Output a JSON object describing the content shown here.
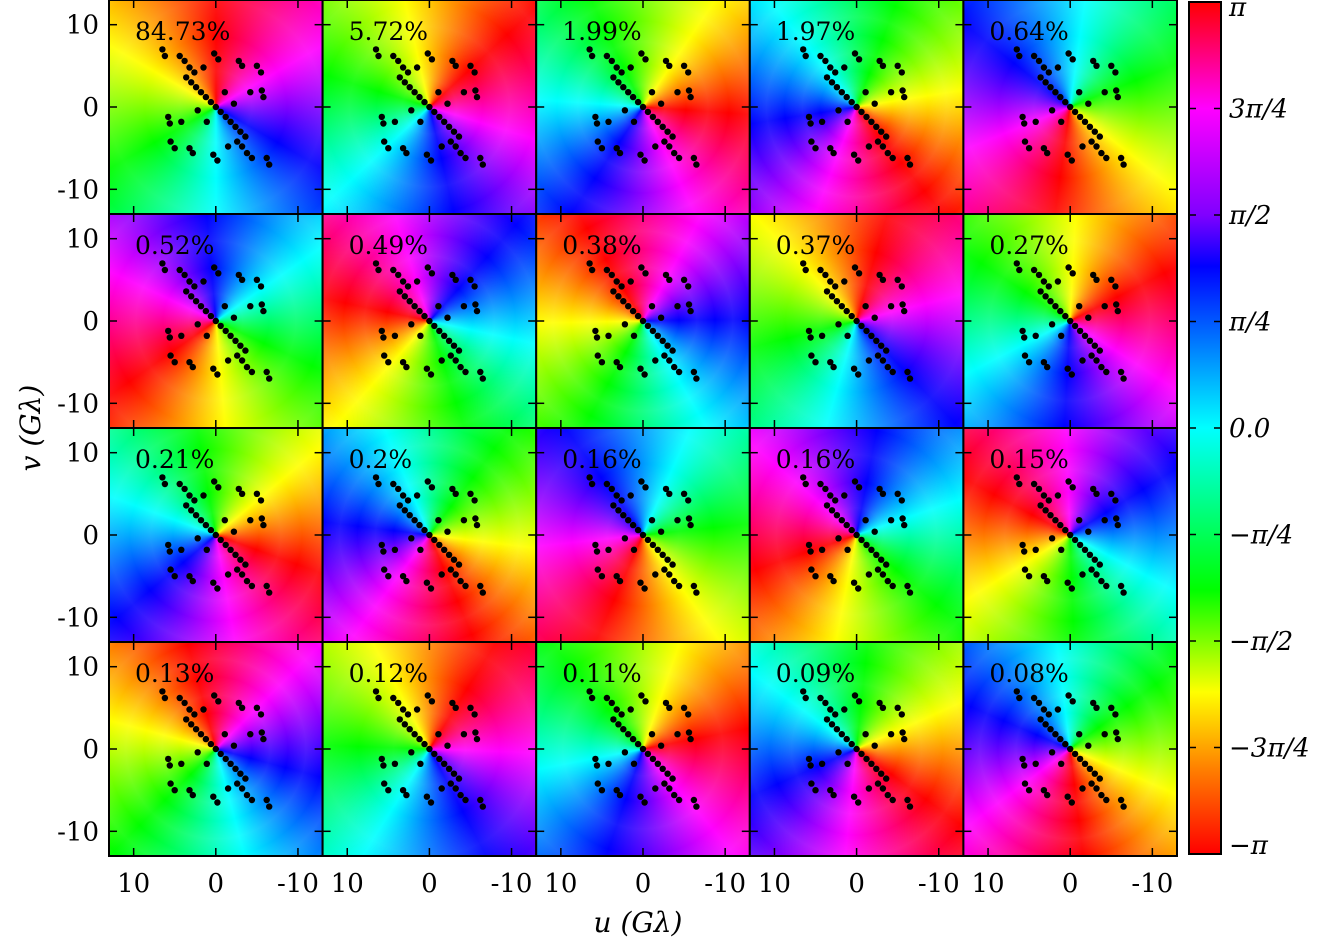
{
  "chart_data": {
    "type": "heatmap",
    "title": "",
    "xlabel": "u (Gλ)",
    "ylabel": "v (Gλ)",
    "grid_rows": 4,
    "grid_cols": 5,
    "xlim": [
      13,
      -13
    ],
    "ylim": [
      -13,
      13
    ],
    "x_ticks": [
      "10",
      "0",
      "-10"
    ],
    "y_ticks": [
      "10",
      "0",
      "-10"
    ],
    "panel_labels": [
      "84.73%",
      "5.72%",
      "1.99%",
      "1.97%",
      "0.64%",
      "0.52%",
      "0.49%",
      "0.38%",
      "0.37%",
      "0.27%",
      "0.21%",
      "0.2%",
      "0.16%",
      "0.16%",
      "0.15%",
      "0.13%",
      "0.12%",
      "0.11%",
      "0.09%",
      "0.08%"
    ],
    "colorbar": {
      "range": [
        -3.14159,
        3.14159
      ],
      "tick_labels": [
        "π",
        "3π/4",
        "π/2",
        "π/4",
        "0.0",
        "−π/4",
        "−π/2",
        "−3π/4",
        "−π"
      ],
      "tick_values": [
        3.14159,
        2.35619,
        1.5708,
        0.7854,
        0,
        -0.7854,
        -1.5708,
        -2.35619,
        -3.14159
      ],
      "colormap": "hsv-phase"
    },
    "uv_points": [
      [
        6.5,
        7
      ],
      [
        6.2,
        6.2
      ],
      [
        0.2,
        6.5
      ],
      [
        -0.3,
        5.8
      ],
      [
        -2.8,
        5.6
      ],
      [
        -3.2,
        5
      ],
      [
        -5,
        5
      ],
      [
        -5.5,
        4.2
      ],
      [
        3.6,
        3.6
      ],
      [
        3.0,
        3.0
      ],
      [
        2.4,
        2.4
      ],
      [
        1.8,
        1.8
      ],
      [
        1.2,
        1.2
      ],
      [
        0.6,
        0.6
      ],
      [
        0,
        0
      ],
      [
        -0.6,
        -0.6
      ],
      [
        -1.2,
        -1.2
      ],
      [
        -1.8,
        -1.8
      ],
      [
        -2.4,
        -2.4
      ],
      [
        -3.0,
        -3.0
      ],
      [
        -3.6,
        -3.6
      ],
      [
        3.2,
        4.8
      ],
      [
        2.6,
        4.2
      ],
      [
        -3.2,
        -4.8
      ],
      [
        -2.6,
        -4.2
      ],
      [
        5.8,
        -1.2
      ],
      [
        5.6,
        -2
      ],
      [
        -5.8,
        1.2
      ],
      [
        -5.6,
        2
      ],
      [
        0.3,
        -5.8
      ],
      [
        -0.2,
        -6.5
      ],
      [
        2.8,
        -5.6
      ],
      [
        3.2,
        -5
      ],
      [
        5,
        -5
      ],
      [
        5.5,
        -4.2
      ],
      [
        -6.5,
        -7
      ],
      [
        -6.2,
        -6.2
      ],
      [
        4.2,
        -1.8
      ],
      [
        -4.2,
        1.8
      ],
      [
        1.5,
        4.8
      ],
      [
        -1.5,
        -4.8
      ],
      [
        -3.8,
        -5.6
      ],
      [
        -4.4,
        -6.2
      ],
      [
        3.8,
        5.6
      ],
      [
        4.4,
        6.2
      ],
      [
        1.1,
        -1.8
      ],
      [
        -1.1,
        1.8
      ],
      [
        2.2,
        -0.4
      ],
      [
        -2.2,
        0.4
      ]
    ]
  }
}
